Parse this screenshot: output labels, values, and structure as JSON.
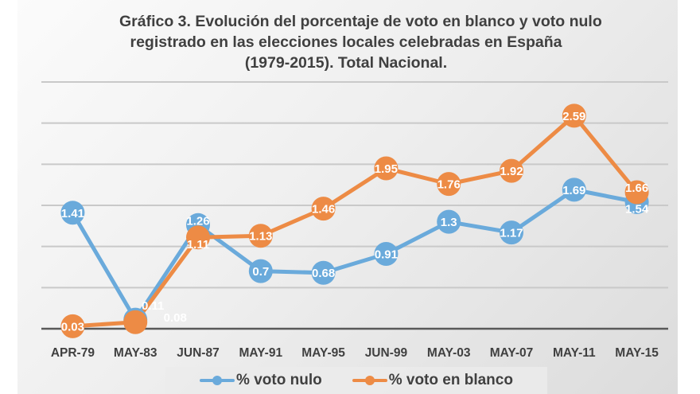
{
  "chart_data": {
    "type": "line",
    "title": [
      "Gráfico 3. Evolución del porcentaje de voto en blanco y voto nulo",
      "registrado en las elecciones locales celebradas en España",
      "(1979-2015). Total Nacional."
    ],
    "xlabel": "",
    "ylabel": "",
    "categories": [
      "APR-79",
      "MAY-83",
      "JUN-87",
      "MAY-91",
      "MAY-95",
      "JUN-99",
      "MAY-03",
      "MAY-07",
      "MAY-11",
      "MAY-15"
    ],
    "ylim": [
      0,
      3
    ],
    "ygrid_step": 0.5,
    "grid": true,
    "y_tick_labels_visible": false,
    "legend_position": "bottom",
    "series": [
      {
        "name": "% voto nulo",
        "color": "#6aaadb",
        "values": [
          1.41,
          0.11,
          1.26,
          0.7,
          0.68,
          0.91,
          1.3,
          1.17,
          1.69,
          1.54
        ],
        "labels": [
          "1.41",
          "0.11",
          "1.26",
          "0.7",
          "0.68",
          "0.91",
          "1.3",
          "1.17",
          "1.69",
          "1.54"
        ]
      },
      {
        "name": "% voto en blanco",
        "color": "#ed8b45",
        "values": [
          0.03,
          0.08,
          1.11,
          1.13,
          1.46,
          1.95,
          1.76,
          1.92,
          2.59,
          1.66
        ],
        "labels": [
          "0.03",
          "0.08",
          "1.11",
          "1.13",
          "1.46",
          "1.95",
          "1.76",
          "1.92",
          "2.59",
          "1.66"
        ]
      }
    ]
  }
}
